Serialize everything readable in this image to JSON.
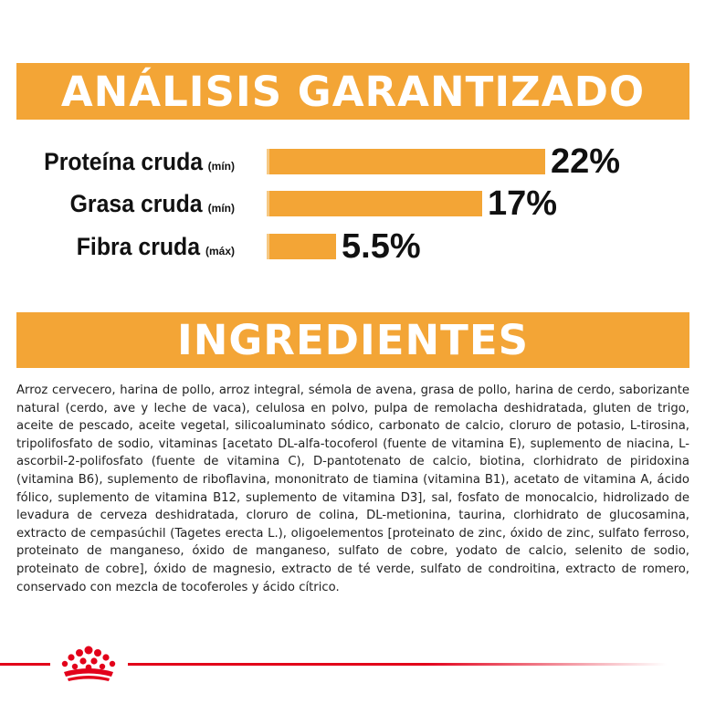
{
  "analysis": {
    "title": "ANÁLISIS GARANTIZADO",
    "nutrients": [
      {
        "name": "Proteína cruda",
        "qualifier": "(mín)",
        "value": "22%",
        "percent": 22
      },
      {
        "name": "Grasa cruda",
        "qualifier": "(mín)",
        "value": "17%",
        "percent": 17
      },
      {
        "name": "Fibra cruda",
        "qualifier": "(máx)",
        "value": "5.5%",
        "percent": 5.5
      }
    ]
  },
  "ingredients": {
    "title": "INGREDIENTES",
    "text": "Arroz cervecero, harina de pollo, arroz integral, sémola de avena, grasa de pollo, harina de cerdo, saborizante natural (cerdo, ave y leche de vaca), celulosa en polvo, pulpa de remolacha deshidratada, gluten de trigo, aceite de pescado, aceite vegetal, silicoaluminato sódico, carbonato de calcio, cloruro de potasio, L-tirosina, tripolifosfato de sodio, vitaminas [acetato DL-alfa-tocoferol (fuente de vitamina E), suplemento de niacina, L-ascorbil-2-polifosfato (fuente de vitamina C), D-pantotenato de calcio, biotina, clorhidrato de piridoxina (vitamina B6), suplemento de riboflavina, mononitrato de tiamina (vitamina B1), acetato de vitamina A, ácido fólico, suplemento de vitamina B12, suplemento de vitamina D3], sal, fosfato de monocalcio, hidrolizado de levadura de cerveza deshidratada, cloruro de colina, DL-metionina, taurina, clorhidrato de glucosamina, extracto de cempasúchil (Tagetes erecta L.), oligoelementos [proteinato de zinc, óxido de zinc, sulfato ferroso, proteinato de manganeso, óxido de manganeso, sulfato de cobre, yodato de calcio, selenito de sodio, proteinato de cobre], óxido de magnesio, extracto de té verde, sulfato de condroitina, extracto de romero, conservado con mezcla de tocoferoles y ácido cítrico."
  },
  "footer": {
    "logo": "royal-canin-crown-icon"
  },
  "colors": {
    "accent": "#f3a536",
    "brand_red": "#e2001a"
  }
}
